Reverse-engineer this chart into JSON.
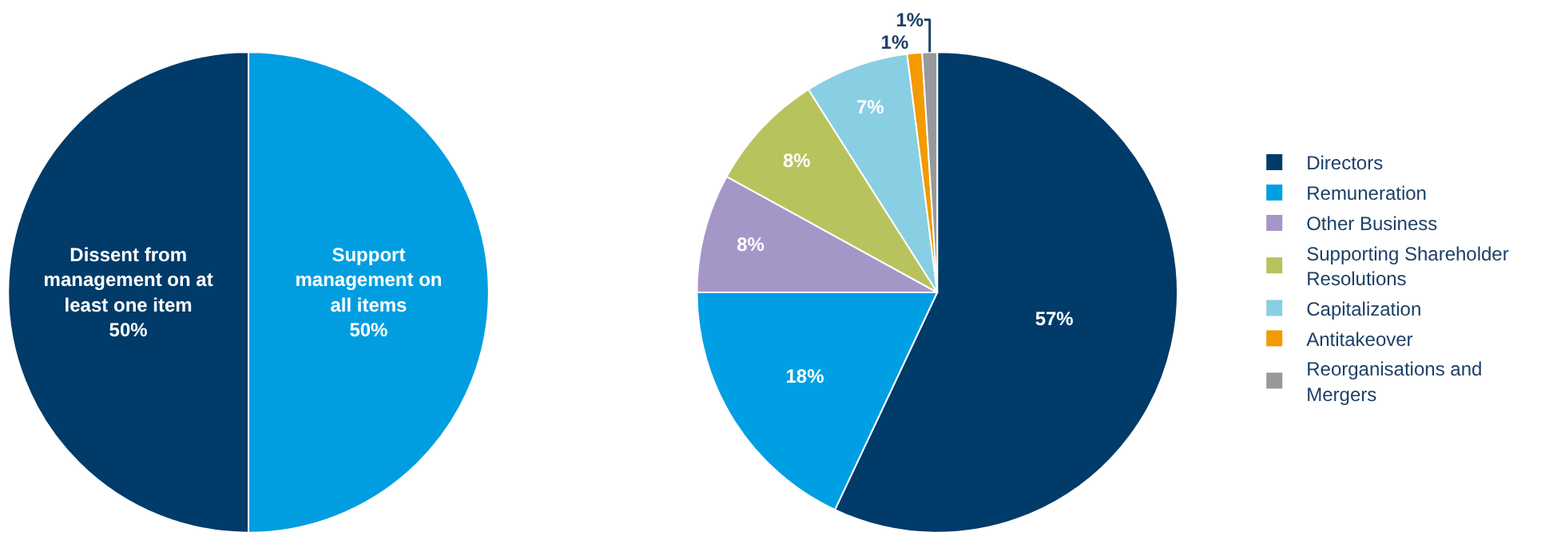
{
  "chart_data": [
    {
      "type": "pie",
      "categories": [
        "Support management on all items",
        "Dissent from management on at least one item"
      ],
      "values": [
        50,
        50
      ],
      "colors": [
        "#009ee0",
        "#003b69"
      ],
      "value_labels": [
        "50%",
        "50%"
      ],
      "legend": false
    },
    {
      "type": "pie",
      "categories": [
        "Directors",
        "Remuneration",
        "Other Business",
        "Supporting Shareholder Resolutions",
        "Capitalization",
        "Antitakeover",
        "Reorganisations and Mergers"
      ],
      "values": [
        57,
        18,
        8,
        8,
        7,
        1,
        1
      ],
      "colors": [
        "#003b69",
        "#009fe3",
        "#a596c8",
        "#b8c35e",
        "#88cfe3",
        "#f39a00",
        "#97989b"
      ],
      "value_labels": [
        "57%",
        "18%",
        "8%",
        "8%",
        "7%",
        "1%",
        "1%"
      ],
      "legend": "right"
    }
  ]
}
